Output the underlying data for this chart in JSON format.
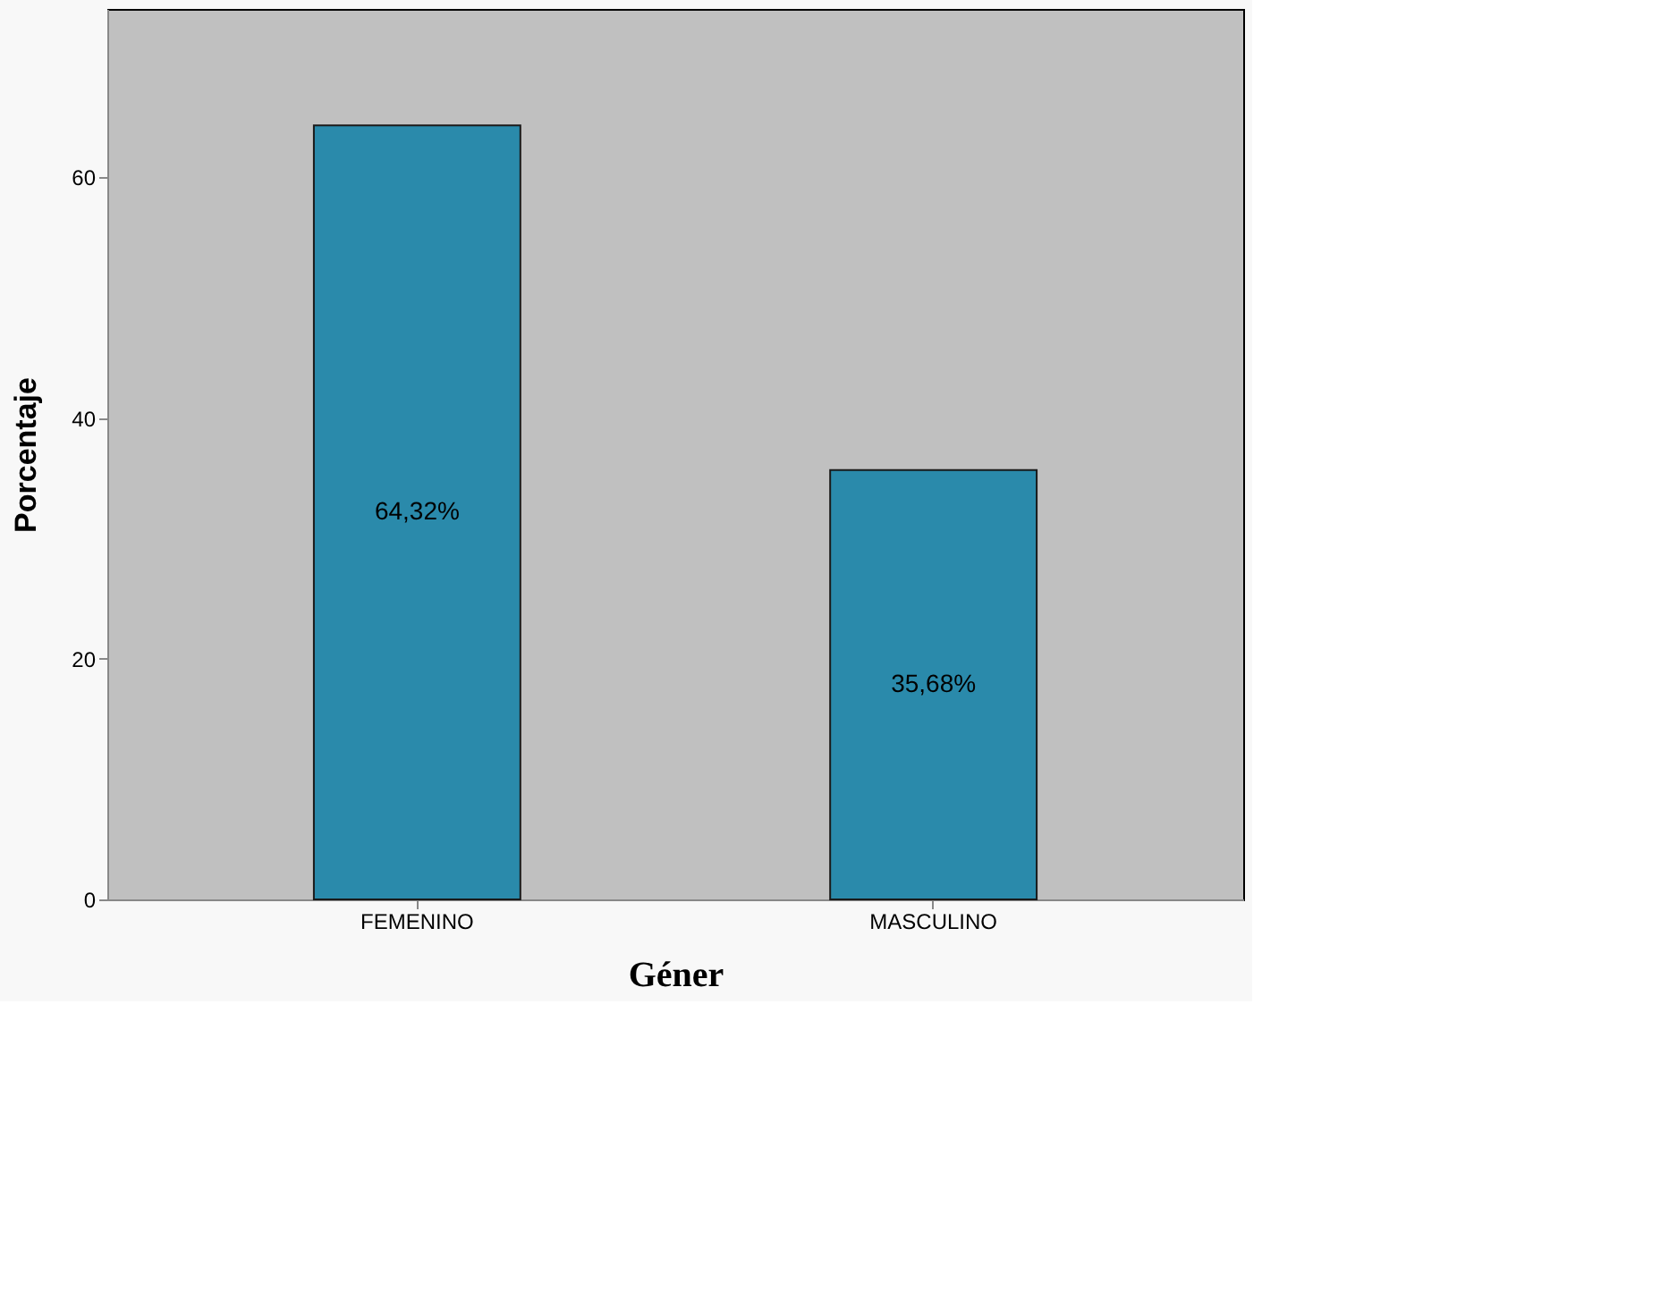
{
  "chart_data": {
    "type": "bar",
    "categories": [
      "FEMENINO",
      "MASCULINO"
    ],
    "values": [
      64.32,
      35.68
    ],
    "value_labels": [
      "64,32%",
      "35,68%"
    ],
    "color": "#2a8aab",
    "xlabel": "Géner",
    "ylabel": "Porcentaje",
    "ylim": [
      0,
      74
    ],
    "yticks": [
      0,
      20,
      40,
      60
    ],
    "grid": false
  }
}
